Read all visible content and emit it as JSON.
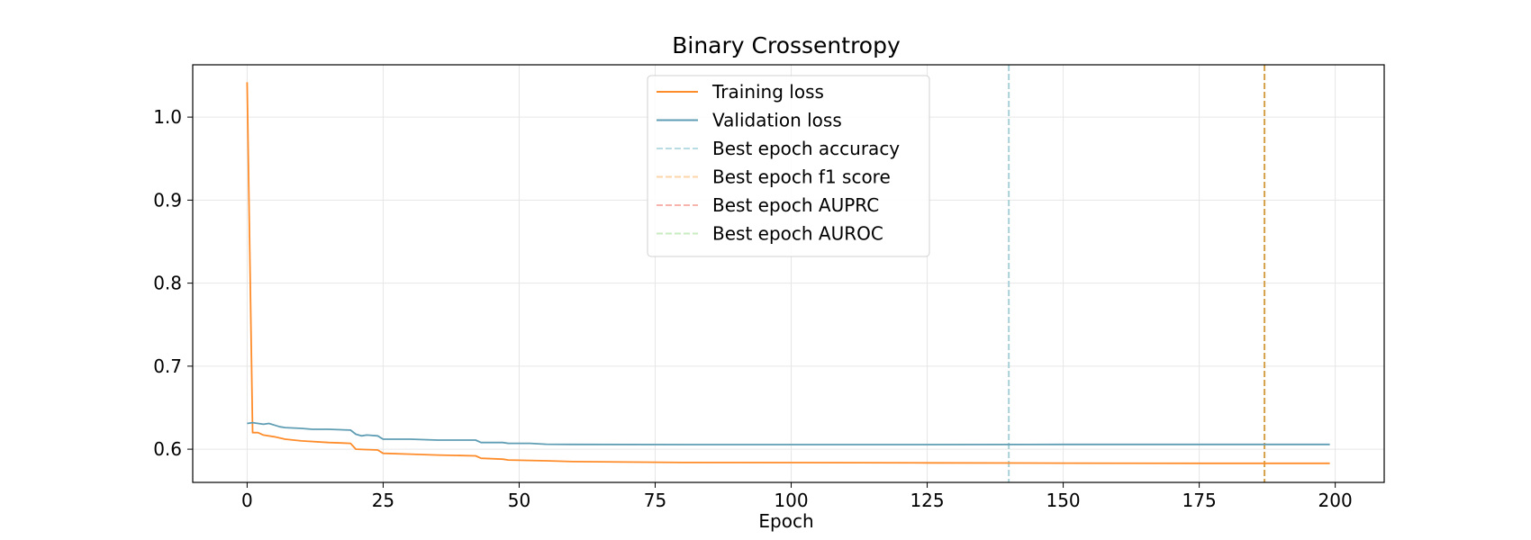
{
  "chart_data": {
    "type": "line",
    "title": "Binary Crossentropy",
    "xlabel": "Epoch",
    "ylabel": "",
    "xlim": [
      -10,
      209
    ],
    "ylim": [
      0.56,
      1.063
    ],
    "xticks": [
      0,
      25,
      50,
      75,
      100,
      125,
      150,
      175,
      200
    ],
    "yticks": [
      0.6,
      0.7,
      0.8,
      0.9,
      1.0
    ],
    "ytick_labels": [
      "0.6",
      "0.7",
      "0.8",
      "0.9",
      "1.0"
    ],
    "grid": true,
    "legend_position": "upper center",
    "series": [
      {
        "name": "Training loss",
        "color": "#ff8c2a",
        "points": [
          [
            0,
            1.042
          ],
          [
            1,
            0.62
          ],
          [
            2,
            0.62
          ],
          [
            3,
            0.617
          ],
          [
            5,
            0.615
          ],
          [
            7,
            0.612
          ],
          [
            10,
            0.61
          ],
          [
            15,
            0.608
          ],
          [
            19,
            0.607
          ],
          [
            20,
            0.6
          ],
          [
            24,
            0.599
          ],
          [
            25,
            0.595
          ],
          [
            30,
            0.594
          ],
          [
            35,
            0.593
          ],
          [
            42,
            0.592
          ],
          [
            43,
            0.589
          ],
          [
            47,
            0.588
          ],
          [
            48,
            0.587
          ],
          [
            55,
            0.586
          ],
          [
            60,
            0.585
          ],
          [
            70,
            0.5845
          ],
          [
            80,
            0.584
          ],
          [
            100,
            0.5838
          ],
          [
            125,
            0.5835
          ],
          [
            150,
            0.5832
          ],
          [
            175,
            0.583
          ],
          [
            199,
            0.583
          ]
        ]
      },
      {
        "name": "Validation loss",
        "color": "#5e9db3",
        "points": [
          [
            0,
            0.631
          ],
          [
            1,
            0.632
          ],
          [
            2,
            0.631
          ],
          [
            3,
            0.63
          ],
          [
            4,
            0.631
          ],
          [
            5,
            0.629
          ],
          [
            6,
            0.627
          ],
          [
            7,
            0.626
          ],
          [
            10,
            0.625
          ],
          [
            12,
            0.624
          ],
          [
            15,
            0.624
          ],
          [
            19,
            0.623
          ],
          [
            20,
            0.618
          ],
          [
            21,
            0.616
          ],
          [
            22,
            0.617
          ],
          [
            24,
            0.616
          ],
          [
            25,
            0.612
          ],
          [
            30,
            0.612
          ],
          [
            35,
            0.611
          ],
          [
            40,
            0.611
          ],
          [
            42,
            0.611
          ],
          [
            43,
            0.608
          ],
          [
            47,
            0.608
          ],
          [
            48,
            0.607
          ],
          [
            52,
            0.607
          ],
          [
            55,
            0.606
          ],
          [
            60,
            0.6057
          ],
          [
            80,
            0.6055
          ],
          [
            100,
            0.6055
          ],
          [
            125,
            0.6055
          ],
          [
            150,
            0.6057
          ],
          [
            175,
            0.6058
          ],
          [
            199,
            0.6058
          ]
        ]
      }
    ],
    "vertical_lines": [
      {
        "name": "Best epoch accuracy",
        "x": 140,
        "color": "#a8d0d8"
      },
      {
        "name": "Best epoch f1 score",
        "x": 187,
        "color": "#d4a048"
      }
    ],
    "legend": [
      {
        "label": "Training loss",
        "style": "solid",
        "color": "#ff8c2a"
      },
      {
        "label": "Validation loss",
        "style": "solid",
        "color": "#5e9db3"
      },
      {
        "label": "Best epoch accuracy",
        "style": "dashed",
        "color": "#b8dce4"
      },
      {
        "label": "Best epoch f1 score",
        "style": "dashed",
        "color": "#fcd6a8"
      },
      {
        "label": "Best epoch AUPRC",
        "style": "dashed",
        "color": "#f7b4ac"
      },
      {
        "label": "Best epoch AUROC",
        "style": "dashed",
        "color": "#c8ecc0"
      }
    ]
  }
}
